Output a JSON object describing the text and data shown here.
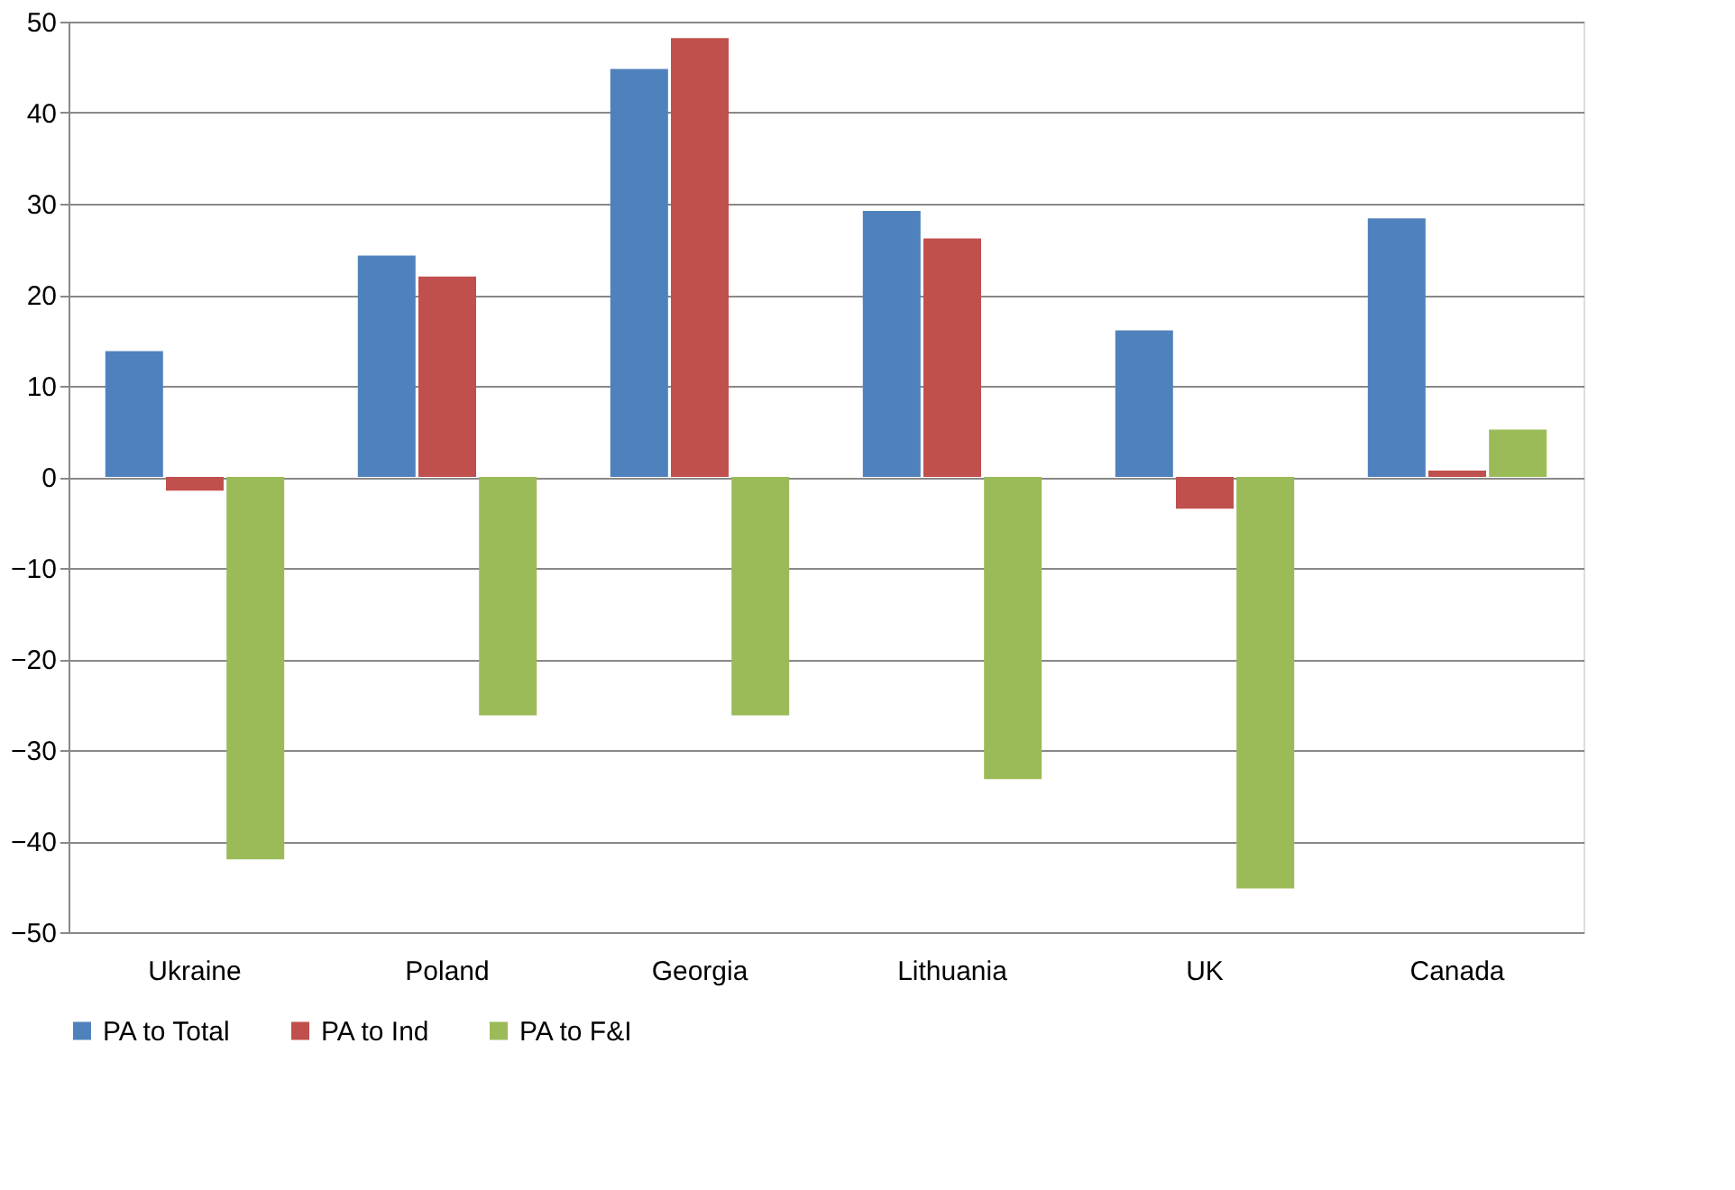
{
  "chart_data": {
    "type": "bar",
    "categories": [
      "Ukraine",
      "Poland",
      "Georgia",
      "Lithuania",
      "UK",
      "Canada"
    ],
    "series": [
      {
        "name": "PA to Total",
        "color": "#4f81bd",
        "values": [
          13.8,
          24.3,
          44.8,
          29.2,
          16.1,
          28.4
        ]
      },
      {
        "name": "PA to Ind",
        "color": "#c0504d",
        "values": [
          -1.5,
          22,
          48.2,
          26.2,
          -3.5,
          0.7
        ]
      },
      {
        "name": "PA to F&I",
        "color": "#9bbb59",
        "values": [
          -42,
          -26.2,
          -26.2,
          -33.2,
          -45.2,
          5.2
        ]
      }
    ],
    "ylim": [
      -50,
      50
    ],
    "yticks": [
      -50,
      -40,
      -30,
      -20,
      -10,
      0,
      10,
      20,
      30,
      40,
      50
    ],
    "grid": "y",
    "legend": "bottom"
  }
}
